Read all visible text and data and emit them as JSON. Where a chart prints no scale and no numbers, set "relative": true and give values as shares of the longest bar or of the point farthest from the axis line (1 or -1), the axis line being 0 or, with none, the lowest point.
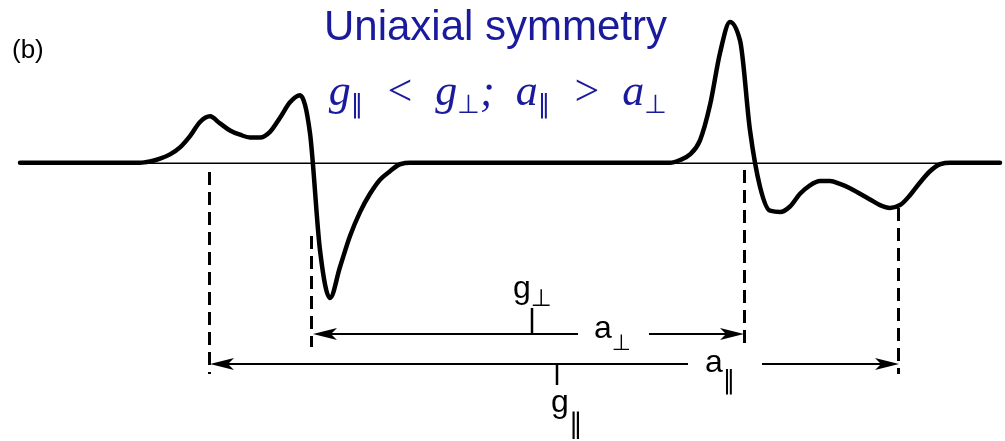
{
  "chart_data": {
    "type": "line",
    "title": "Uniaxial symmetry",
    "subtitle": "g$_{∥}$ < g$_{⊥}$; a$_{∥}$ > a$_{⊥}$",
    "annotations": [
      "(b)",
      "g$_{⊥}$",
      "a$_{⊥}$",
      "a$_{∥}$",
      "g$_{∥}$"
    ],
    "categories": [
      null,
      null,
      null,
      null,
      null,
      null,
      null,
      null,
      null,
      null,
      null,
      null,
      null,
      null,
      null,
      null,
      null,
      null,
      null,
      null,
      null,
      null,
      null,
      null,
      null,
      null,
      null,
      null,
      null,
      null,
      null,
      null,
      null,
      null,
      null,
      null,
      null,
      null,
      null,
      null,
      null,
      null,
      null,
      null,
      null,
      null,
      null,
      null,
      null,
      null,
      null,
      null,
      null,
      null,
      null,
      null,
      null,
      null,
      null,
      null,
      null,
      null,
      null,
      null,
      null,
      null,
      null,
      null,
      null,
      null,
      null,
      null,
      null,
      null,
      null,
      null,
      null,
      null,
      null,
      null,
      null,
      null,
      null,
      null,
      null,
      null,
      null,
      null,
      null,
      null,
      null,
      null,
      null,
      null,
      null,
      null,
      null,
      null,
      null
    ],
    "values": [
      0,
      0,
      0,
      0,
      0,
      0,
      0,
      0,
      0,
      0,
      0,
      0,
      0,
      0.01,
      0.03,
      0.06,
      0.11,
      0.19,
      0.29,
      0.33,
      0.28,
      0.23,
      0.2,
      0.18,
      0.18,
      0.22,
      0.32,
      0.43,
      0.48,
      0.21,
      -0.62,
      -0.96,
      -0.74,
      -0.52,
      -0.35,
      -0.22,
      -0.12,
      -0.06,
      -0.01,
      0,
      0,
      0,
      0,
      0,
      0,
      0,
      0,
      0,
      0,
      0,
      0,
      0,
      0,
      0,
      0,
      0,
      0,
      0,
      0,
      0,
      0,
      0,
      0,
      0,
      0,
      0,
      0.02,
      0.06,
      0.16,
      0.41,
      0.78,
      1,
      0.87,
      0.23,
      -0.17,
      -0.34,
      -0.35,
      -0.31,
      -0.22,
      -0.16,
      -0.13,
      -0.13,
      -0.15,
      -0.18,
      -0.22,
      -0.26,
      -0.3,
      -0.32,
      -0.3,
      -0.23,
      -0.14,
      -0.06,
      -0.01,
      0,
      0,
      0,
      0,
      0,
      0
    ],
    "color": "#000000",
    "relative": true
  }
}
